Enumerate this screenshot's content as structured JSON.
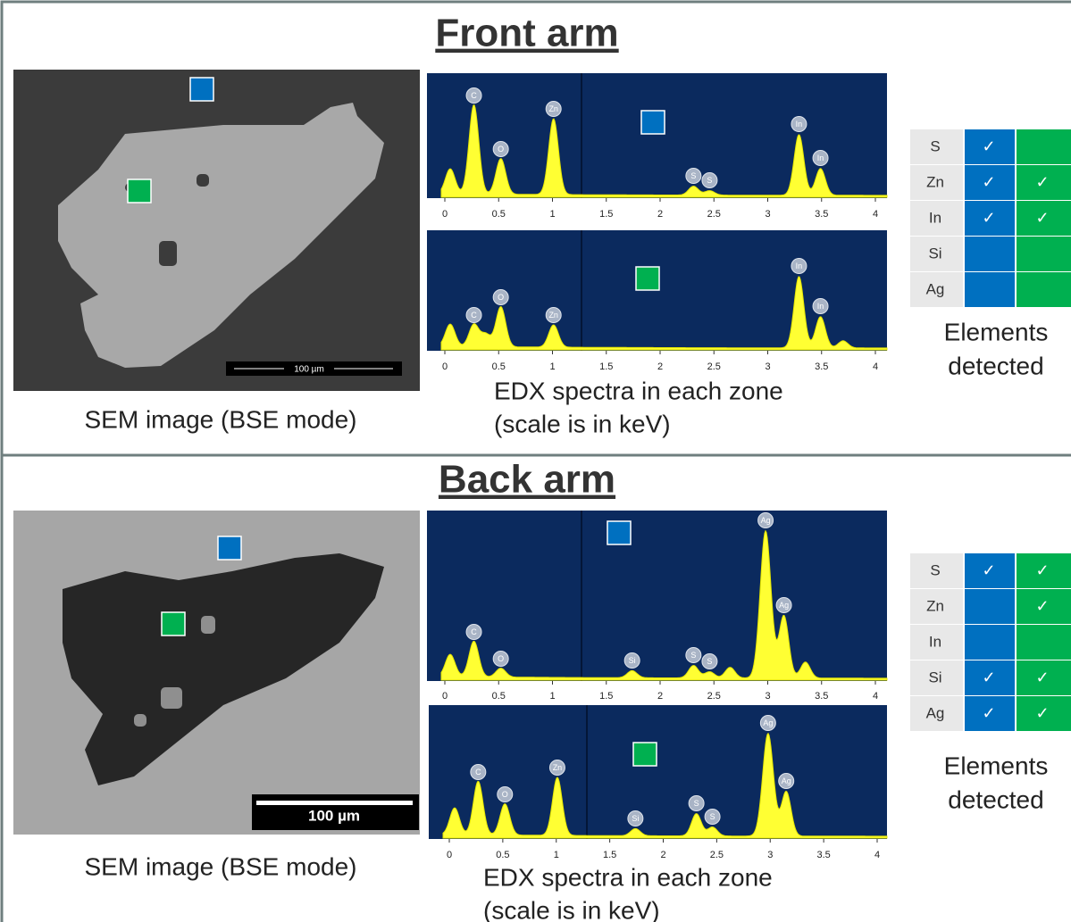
{
  "panels": [
    {
      "title": "Front arm",
      "sem": {
        "caption": "SEM image (BSE mode)",
        "scale_bar": "100 µm"
      },
      "edx": {
        "caption_lines": [
          "EDX spectra in each zone",
          "(scale is in keV)"
        ],
        "spectra": [
          {
            "ticks": [
              0,
              0.5,
              1,
              1.5,
              2,
              2.5,
              3,
              3.5,
              4
            ],
            "peak_labels": [
              "C",
              "O",
              "Zn",
              "S",
              "S",
              "In",
              "In"
            ]
          },
          {
            "ticks": [
              0,
              0.5,
              1,
              1.5,
              2,
              2.5,
              3,
              3.5,
              4
            ],
            "peak_labels": [
              "C",
              "O",
              "Zn",
              "In",
              "In"
            ]
          }
        ]
      },
      "elements": {
        "rows": [
          {
            "element": "S",
            "zone_blue": "✓"
          },
          {
            "element": "Zn",
            "zone_blue": "✓",
            "zone_green": "✓"
          },
          {
            "element": "In",
            "zone_blue": "✓",
            "zone_green": "✓"
          },
          {
            "element": "Si"
          },
          {
            "element": "Ag"
          }
        ],
        "caption_lines": [
          "Elements",
          "detected"
        ]
      }
    },
    {
      "title": "Back arm",
      "sem": {
        "caption": "SEM image (BSE mode)",
        "scale_bar": "100 µm"
      },
      "edx": {
        "caption_lines": [
          "EDX spectra in each zone",
          "(scale is in keV)"
        ],
        "spectra": [
          {
            "ticks": [
              0,
              0.5,
              1,
              1.5,
              2,
              2.5,
              3,
              3.5,
              4
            ],
            "peak_labels": [
              "C",
              "O",
              "Si",
              "S",
              "S",
              "Ag",
              "Ag"
            ]
          },
          {
            "ticks": [
              0,
              0.5,
              1,
              1.5,
              2,
              2.5,
              3,
              3.5,
              4
            ],
            "peak_labels": [
              "C",
              "O",
              "Zn",
              "Si",
              "S",
              "S",
              "Ag",
              "Ag"
            ]
          }
        ]
      },
      "elements": {
        "rows": [
          {
            "element": "S",
            "zone_blue": "✓",
            "zone_green": "✓"
          },
          {
            "element": "Zn",
            "zone_green": "✓"
          },
          {
            "element": "In"
          },
          {
            "element": "Si",
            "zone_blue": "✓",
            "zone_green": "✓"
          },
          {
            "element": "Ag",
            "zone_blue": "✓",
            "zone_green": "✓"
          }
        ],
        "caption_lines": [
          "Elements",
          "detected"
        ]
      }
    }
  ]
}
